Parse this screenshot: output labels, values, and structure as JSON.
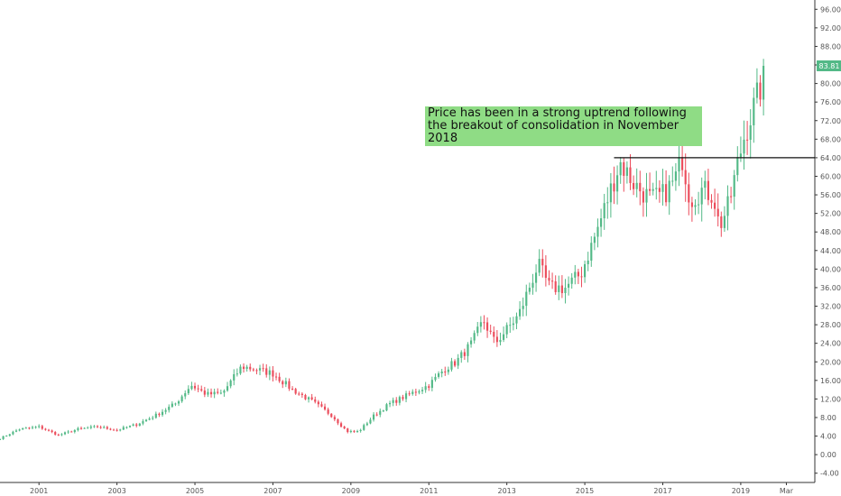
{
  "chart_data": {
    "type": "candlestick",
    "ylim": [
      -6,
      98
    ],
    "y_ticks": [
      "-4.00",
      "0.00",
      "4.00",
      "8.00",
      "12.00",
      "16.00",
      "20.00",
      "24.00",
      "28.00",
      "32.00",
      "36.00",
      "40.00",
      "44.00",
      "48.00",
      "52.00",
      "56.00",
      "60.00",
      "64.00",
      "68.00",
      "72.00",
      "76.00",
      "80.00",
      "84.00",
      "88.00",
      "92.00",
      "96.00"
    ],
    "x_ticks": [
      {
        "label": "2001",
        "t": 2001.0
      },
      {
        "label": "2003",
        "t": 2003.0
      },
      {
        "label": "2005",
        "t": 2005.0
      },
      {
        "label": "2007",
        "t": 2007.0
      },
      {
        "label": "2009",
        "t": 2009.0
      },
      {
        "label": "2011",
        "t": 2011.0
      },
      {
        "label": "2013",
        "t": 2013.0
      },
      {
        "label": "2015",
        "t": 2015.0
      },
      {
        "label": "2017",
        "t": 2017.0
      },
      {
        "label": "2019",
        "t": 2019.0
      },
      {
        "label": "Mar",
        "t": 2020.17
      }
    ],
    "x_range": [
      2000.0,
      2020.9
    ],
    "last_price": "83.81",
    "colors": {
      "up": "#53b987",
      "down": "#eb4d5c",
      "last_price_bg": "#53b987",
      "annotation_bg": "#8fdc85"
    },
    "horizontal_line": {
      "value": 64.0,
      "from": 2015.75
    },
    "annotation": "Price has been in a strong uptrend following the breakout of consolidation in November 2018",
    "anchors": [
      [
        2000.0,
        3.5
      ],
      [
        2000.5,
        5.5
      ],
      [
        2001.0,
        6.0
      ],
      [
        2001.5,
        4.2
      ],
      [
        2002.0,
        5.5
      ],
      [
        2002.5,
        6.0
      ],
      [
        2003.0,
        5.3
      ],
      [
        2003.5,
        6.5
      ],
      [
        2004.0,
        8.5
      ],
      [
        2004.5,
        11.0
      ],
      [
        2004.9,
        15.0
      ],
      [
        2005.3,
        13.0
      ],
      [
        2005.7,
        13.2
      ],
      [
        2006.2,
        19.0
      ],
      [
        2006.5,
        18.5
      ],
      [
        2007.0,
        17.5
      ],
      [
        2007.5,
        14.0
      ],
      [
        2008.0,
        11.5
      ],
      [
        2008.5,
        8.5
      ],
      [
        2008.9,
        5.0
      ],
      [
        2009.2,
        5.0
      ],
      [
        2009.6,
        8.5
      ],
      [
        2010.0,
        11.0
      ],
      [
        2010.5,
        13.0
      ],
      [
        2011.0,
        15.0
      ],
      [
        2011.4,
        18.5
      ],
      [
        2011.7,
        20.0
      ],
      [
        2012.1,
        24.0
      ],
      [
        2012.4,
        29.0
      ],
      [
        2012.7,
        24.0
      ],
      [
        2013.0,
        27.0
      ],
      [
        2013.3,
        30.0
      ],
      [
        2013.8,
        41.0
      ],
      [
        2014.1,
        36.0
      ],
      [
        2014.5,
        36.0
      ],
      [
        2014.9,
        39.0
      ],
      [
        2015.3,
        48.0
      ],
      [
        2015.7,
        58.0
      ],
      [
        2015.9,
        63.0
      ],
      [
        2016.3,
        58.0
      ],
      [
        2016.7,
        55.0
      ],
      [
        2017.0,
        56.0
      ],
      [
        2017.3,
        59.0
      ],
      [
        2017.5,
        64.0
      ],
      [
        2017.7,
        55.0
      ],
      [
        2018.0,
        57.0
      ],
      [
        2018.3,
        56.0
      ],
      [
        2018.45,
        49.0
      ],
      [
        2018.7,
        54.0
      ],
      [
        2018.9,
        62.0
      ],
      [
        2019.1,
        69.0
      ],
      [
        2019.3,
        74.0
      ],
      [
        2019.5,
        79.0
      ],
      [
        2019.6,
        83.81
      ]
    ]
  },
  "annotation": {
    "text": "Price has been in a strong uptrend following the breakout of consolidation in November 2018"
  }
}
